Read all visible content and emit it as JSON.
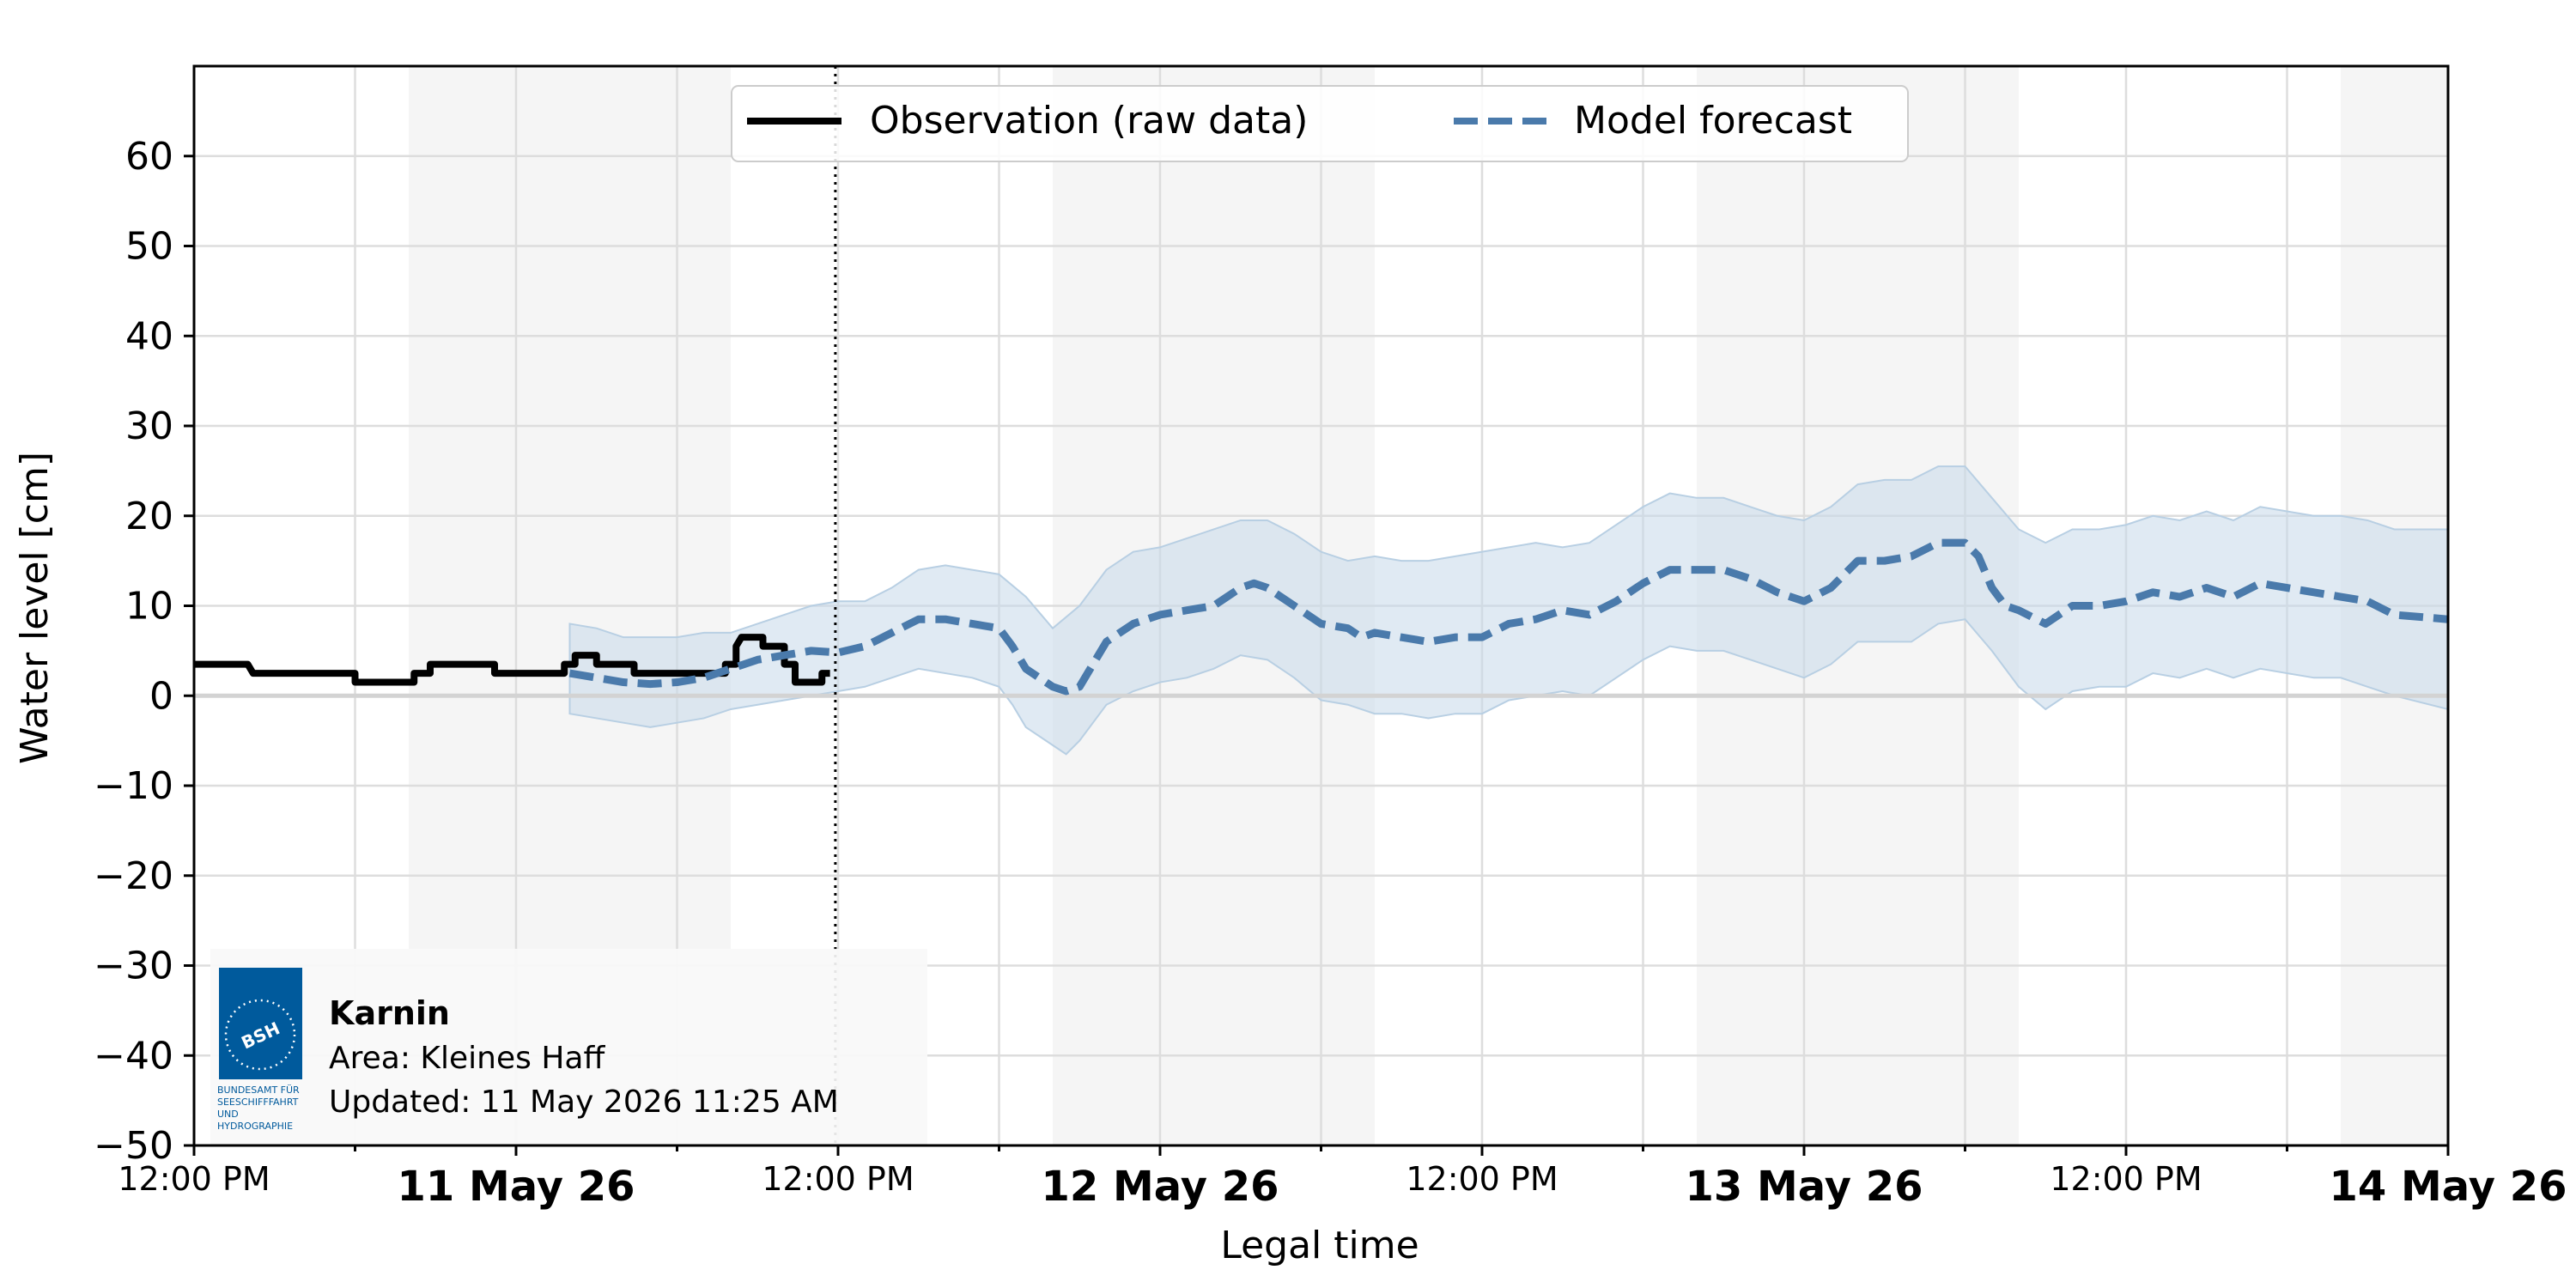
{
  "chart_data": {
    "type": "line",
    "xlabel": "Legal time",
    "ylabel": "Water level [cm]",
    "ylim": [
      -50,
      70
    ],
    "yticks": [
      -50,
      -40,
      -30,
      -20,
      -10,
      0,
      10,
      20,
      30,
      40,
      50,
      60
    ],
    "ytick_labels": [
      "−50",
      "−40",
      "−30",
      "−20",
      "−10",
      "0",
      "10",
      "20",
      "30",
      "40",
      "50",
      "60"
    ],
    "x_range_hours": [
      0,
      84
    ],
    "xticks": [
      {
        "hour": 0,
        "label": "12:00 PM",
        "bold": false
      },
      {
        "hour": 12,
        "label": "11 May 26",
        "bold": true
      },
      {
        "hour": 24,
        "label": "12:00 PM",
        "bold": false
      },
      {
        "hour": 36,
        "label": "12 May 26",
        "bold": true
      },
      {
        "hour": 48,
        "label": "12:00 PM",
        "bold": false
      },
      {
        "hour": 60,
        "label": "13 May 26",
        "bold": true
      },
      {
        "hour": 72,
        "label": "12:00 PM",
        "bold": false
      },
      {
        "hour": 84,
        "label": "14 May 26",
        "bold": true
      }
    ],
    "night_shading_hours": [
      [
        8,
        20
      ],
      [
        32,
        44
      ],
      [
        56,
        68
      ],
      [
        80,
        84
      ]
    ],
    "now_marker_hour": 23.9,
    "grid": true,
    "legend": {
      "placement": "top-center",
      "entries": [
        "Observation (raw data)",
        "Model forecast"
      ]
    },
    "series": [
      {
        "name": "Observation (raw data)",
        "style": "step",
        "color": "#000000",
        "points": [
          [
            0,
            3.5
          ],
          [
            2,
            3.5
          ],
          [
            2.2,
            2.5
          ],
          [
            6,
            2.5
          ],
          [
            6,
            1.5
          ],
          [
            8.2,
            1.5
          ],
          [
            8.2,
            2.5
          ],
          [
            8.8,
            2.5
          ],
          [
            8.8,
            3.5
          ],
          [
            11.2,
            3.5
          ],
          [
            11.2,
            2.5
          ],
          [
            13.8,
            2.5
          ],
          [
            13.8,
            3.5
          ],
          [
            14.2,
            3.5
          ],
          [
            14.2,
            4.5
          ],
          [
            15,
            4.5
          ],
          [
            15,
            3.5
          ],
          [
            16.4,
            3.5
          ],
          [
            16.4,
            2.5
          ],
          [
            19.8,
            2.5
          ],
          [
            19.8,
            3.5
          ],
          [
            20.2,
            3.5
          ],
          [
            20.2,
            5.5
          ],
          [
            20.4,
            6.5
          ],
          [
            21.2,
            6.5
          ],
          [
            21.2,
            5.5
          ],
          [
            22,
            5.5
          ],
          [
            22,
            3.5
          ],
          [
            22.4,
            3.5
          ],
          [
            22.4,
            1.5
          ],
          [
            23.4,
            1.5
          ],
          [
            23.4,
            2.5
          ],
          [
            23.7,
            2.5
          ]
        ]
      },
      {
        "name": "Model forecast",
        "style": "dashed",
        "color": "#4a7aab",
        "points": [
          [
            14,
            2.5
          ],
          [
            15,
            2
          ],
          [
            16,
            1.5
          ],
          [
            17,
            1.3
          ],
          [
            18,
            1.5
          ],
          [
            19,
            2
          ],
          [
            20,
            3
          ],
          [
            21,
            4
          ],
          [
            22,
            4.5
          ],
          [
            23,
            5
          ],
          [
            24,
            4.8
          ],
          [
            25,
            5.5
          ],
          [
            26,
            7
          ],
          [
            27,
            8.5
          ],
          [
            28,
            8.5
          ],
          [
            29,
            8
          ],
          [
            30,
            7.5
          ],
          [
            30.5,
            5.5
          ],
          [
            31,
            3
          ],
          [
            32,
            1
          ],
          [
            32.5,
            0.5
          ],
          [
            33,
            1
          ],
          [
            33.5,
            3.5
          ],
          [
            34,
            6
          ],
          [
            35,
            8
          ],
          [
            36,
            9
          ],
          [
            37,
            9.5
          ],
          [
            38,
            10
          ],
          [
            38.5,
            11
          ],
          [
            39,
            12
          ],
          [
            39.5,
            12.5
          ],
          [
            40,
            12
          ],
          [
            41,
            10
          ],
          [
            42,
            8
          ],
          [
            43,
            7.5
          ],
          [
            43.5,
            6.5
          ],
          [
            44,
            7
          ],
          [
            45,
            6.5
          ],
          [
            46,
            6
          ],
          [
            47,
            6.5
          ],
          [
            48,
            6.5
          ],
          [
            49,
            8
          ],
          [
            50,
            8.5
          ],
          [
            51,
            9.5
          ],
          [
            52,
            9
          ],
          [
            53,
            10.5
          ],
          [
            54,
            12.5
          ],
          [
            55,
            14
          ],
          [
            56,
            14
          ],
          [
            57,
            14
          ],
          [
            58,
            13
          ],
          [
            59,
            11.5
          ],
          [
            60,
            10.5
          ],
          [
            61,
            12
          ],
          [
            62,
            15
          ],
          [
            63,
            15
          ],
          [
            64,
            15.5
          ],
          [
            65,
            17
          ],
          [
            66,
            17
          ],
          [
            66.5,
            15.5
          ],
          [
            67,
            12
          ],
          [
            67.5,
            10
          ],
          [
            68,
            9.5
          ],
          [
            69,
            8
          ],
          [
            70,
            10
          ],
          [
            71,
            10
          ],
          [
            72,
            10.5
          ],
          [
            73,
            11.5
          ],
          [
            74,
            11
          ],
          [
            75,
            12
          ],
          [
            76,
            11
          ],
          [
            77,
            12.5
          ],
          [
            78,
            12
          ],
          [
            79,
            11.5
          ],
          [
            80,
            11
          ],
          [
            81,
            10.5
          ],
          [
            82,
            9
          ],
          [
            84,
            8.5
          ]
        ]
      }
    ],
    "forecast_band": {
      "color": "#c6d9ea",
      "upper": [
        [
          14,
          8
        ],
        [
          15,
          7.5
        ],
        [
          16,
          6.5
        ],
        [
          17,
          6.5
        ],
        [
          18,
          6.5
        ],
        [
          19,
          7
        ],
        [
          20,
          7
        ],
        [
          21,
          8
        ],
        [
          22,
          9
        ],
        [
          23,
          10
        ],
        [
          24,
          10.5
        ],
        [
          25,
          10.5
        ],
        [
          26,
          12
        ],
        [
          27,
          14
        ],
        [
          28,
          14.5
        ],
        [
          29,
          14
        ],
        [
          30,
          13.5
        ],
        [
          31,
          11
        ],
        [
          32,
          7.5
        ],
        [
          33,
          10
        ],
        [
          34,
          14
        ],
        [
          35,
          16
        ],
        [
          36,
          16.5
        ],
        [
          37,
          17.5
        ],
        [
          38,
          18.5
        ],
        [
          39,
          19.5
        ],
        [
          40,
          19.5
        ],
        [
          41,
          18
        ],
        [
          42,
          16
        ],
        [
          43,
          15
        ],
        [
          44,
          15.5
        ],
        [
          45,
          15
        ],
        [
          46,
          15
        ],
        [
          47,
          15.5
        ],
        [
          48,
          16
        ],
        [
          49,
          16.5
        ],
        [
          50,
          17
        ],
        [
          51,
          16.5
        ],
        [
          52,
          17
        ],
        [
          53,
          19
        ],
        [
          54,
          21
        ],
        [
          55,
          22.5
        ],
        [
          56,
          22
        ],
        [
          57,
          22
        ],
        [
          58,
          21
        ],
        [
          59,
          20
        ],
        [
          60,
          19.5
        ],
        [
          61,
          21
        ],
        [
          62,
          23.5
        ],
        [
          63,
          24
        ],
        [
          64,
          24
        ],
        [
          65,
          25.5
        ],
        [
          66,
          25.5
        ],
        [
          67,
          22
        ],
        [
          68,
          18.5
        ],
        [
          69,
          17
        ],
        [
          70,
          18.5
        ],
        [
          71,
          18.5
        ],
        [
          72,
          19
        ],
        [
          73,
          20
        ],
        [
          74,
          19.5
        ],
        [
          75,
          20.5
        ],
        [
          76,
          19.5
        ],
        [
          77,
          21
        ],
        [
          78,
          20.5
        ],
        [
          79,
          20
        ],
        [
          80,
          20
        ],
        [
          81,
          19.5
        ],
        [
          82,
          18.5
        ],
        [
          84,
          18.5
        ]
      ],
      "lower": [
        [
          14,
          -2
        ],
        [
          15,
          -2.5
        ],
        [
          16,
          -3
        ],
        [
          17,
          -3.5
        ],
        [
          18,
          -3
        ],
        [
          19,
          -2.5
        ],
        [
          20,
          -1.5
        ],
        [
          21,
          -1
        ],
        [
          22,
          -0.5
        ],
        [
          23,
          0
        ],
        [
          24,
          0.5
        ],
        [
          25,
          1
        ],
        [
          26,
          2
        ],
        [
          27,
          3
        ],
        [
          28,
          2.5
        ],
        [
          29,
          2
        ],
        [
          30,
          1
        ],
        [
          30.5,
          -1
        ],
        [
          31,
          -3.5
        ],
        [
          32,
          -5.5
        ],
        [
          32.5,
          -6.5
        ],
        [
          33,
          -5
        ],
        [
          33.5,
          -3
        ],
        [
          34,
          -1
        ],
        [
          35,
          0.5
        ],
        [
          36,
          1.5
        ],
        [
          37,
          2
        ],
        [
          38,
          3
        ],
        [
          39,
          4.5
        ],
        [
          40,
          4
        ],
        [
          41,
          2
        ],
        [
          42,
          -0.5
        ],
        [
          43,
          -1
        ],
        [
          44,
          -2
        ],
        [
          45,
          -2
        ],
        [
          46,
          -2.5
        ],
        [
          47,
          -2
        ],
        [
          48,
          -2
        ],
        [
          49,
          -0.5
        ],
        [
          50,
          0
        ],
        [
          51,
          0.5
        ],
        [
          52,
          0
        ],
        [
          53,
          2
        ],
        [
          54,
          4
        ],
        [
          55,
          5.5
        ],
        [
          56,
          5
        ],
        [
          57,
          5
        ],
        [
          58,
          4
        ],
        [
          59,
          3
        ],
        [
          60,
          2
        ],
        [
          61,
          3.5
        ],
        [
          62,
          6
        ],
        [
          63,
          6
        ],
        [
          64,
          6
        ],
        [
          65,
          8
        ],
        [
          66,
          8.5
        ],
        [
          67,
          5
        ],
        [
          68,
          1
        ],
        [
          69,
          -1.5
        ],
        [
          70,
          0.5
        ],
        [
          71,
          1
        ],
        [
          72,
          1
        ],
        [
          73,
          2.5
        ],
        [
          74,
          2
        ],
        [
          75,
          3
        ],
        [
          76,
          2
        ],
        [
          77,
          3
        ],
        [
          78,
          2.5
        ],
        [
          79,
          2
        ],
        [
          80,
          2
        ],
        [
          81,
          1
        ],
        [
          82,
          0
        ],
        [
          84,
          -1.5
        ]
      ]
    }
  },
  "info_box": {
    "logo_text": "BSH",
    "logo_caption": [
      "BUNDESAMT FÜR",
      "SEESCHIFFFAHRT",
      "UND",
      "HYDROGRAPHIE"
    ],
    "station": "Karnin",
    "area": "Area: Kleines Haff",
    "updated": "Updated: 11 May 2026 11:25 AM",
    "logo_color": "#005a9c"
  }
}
